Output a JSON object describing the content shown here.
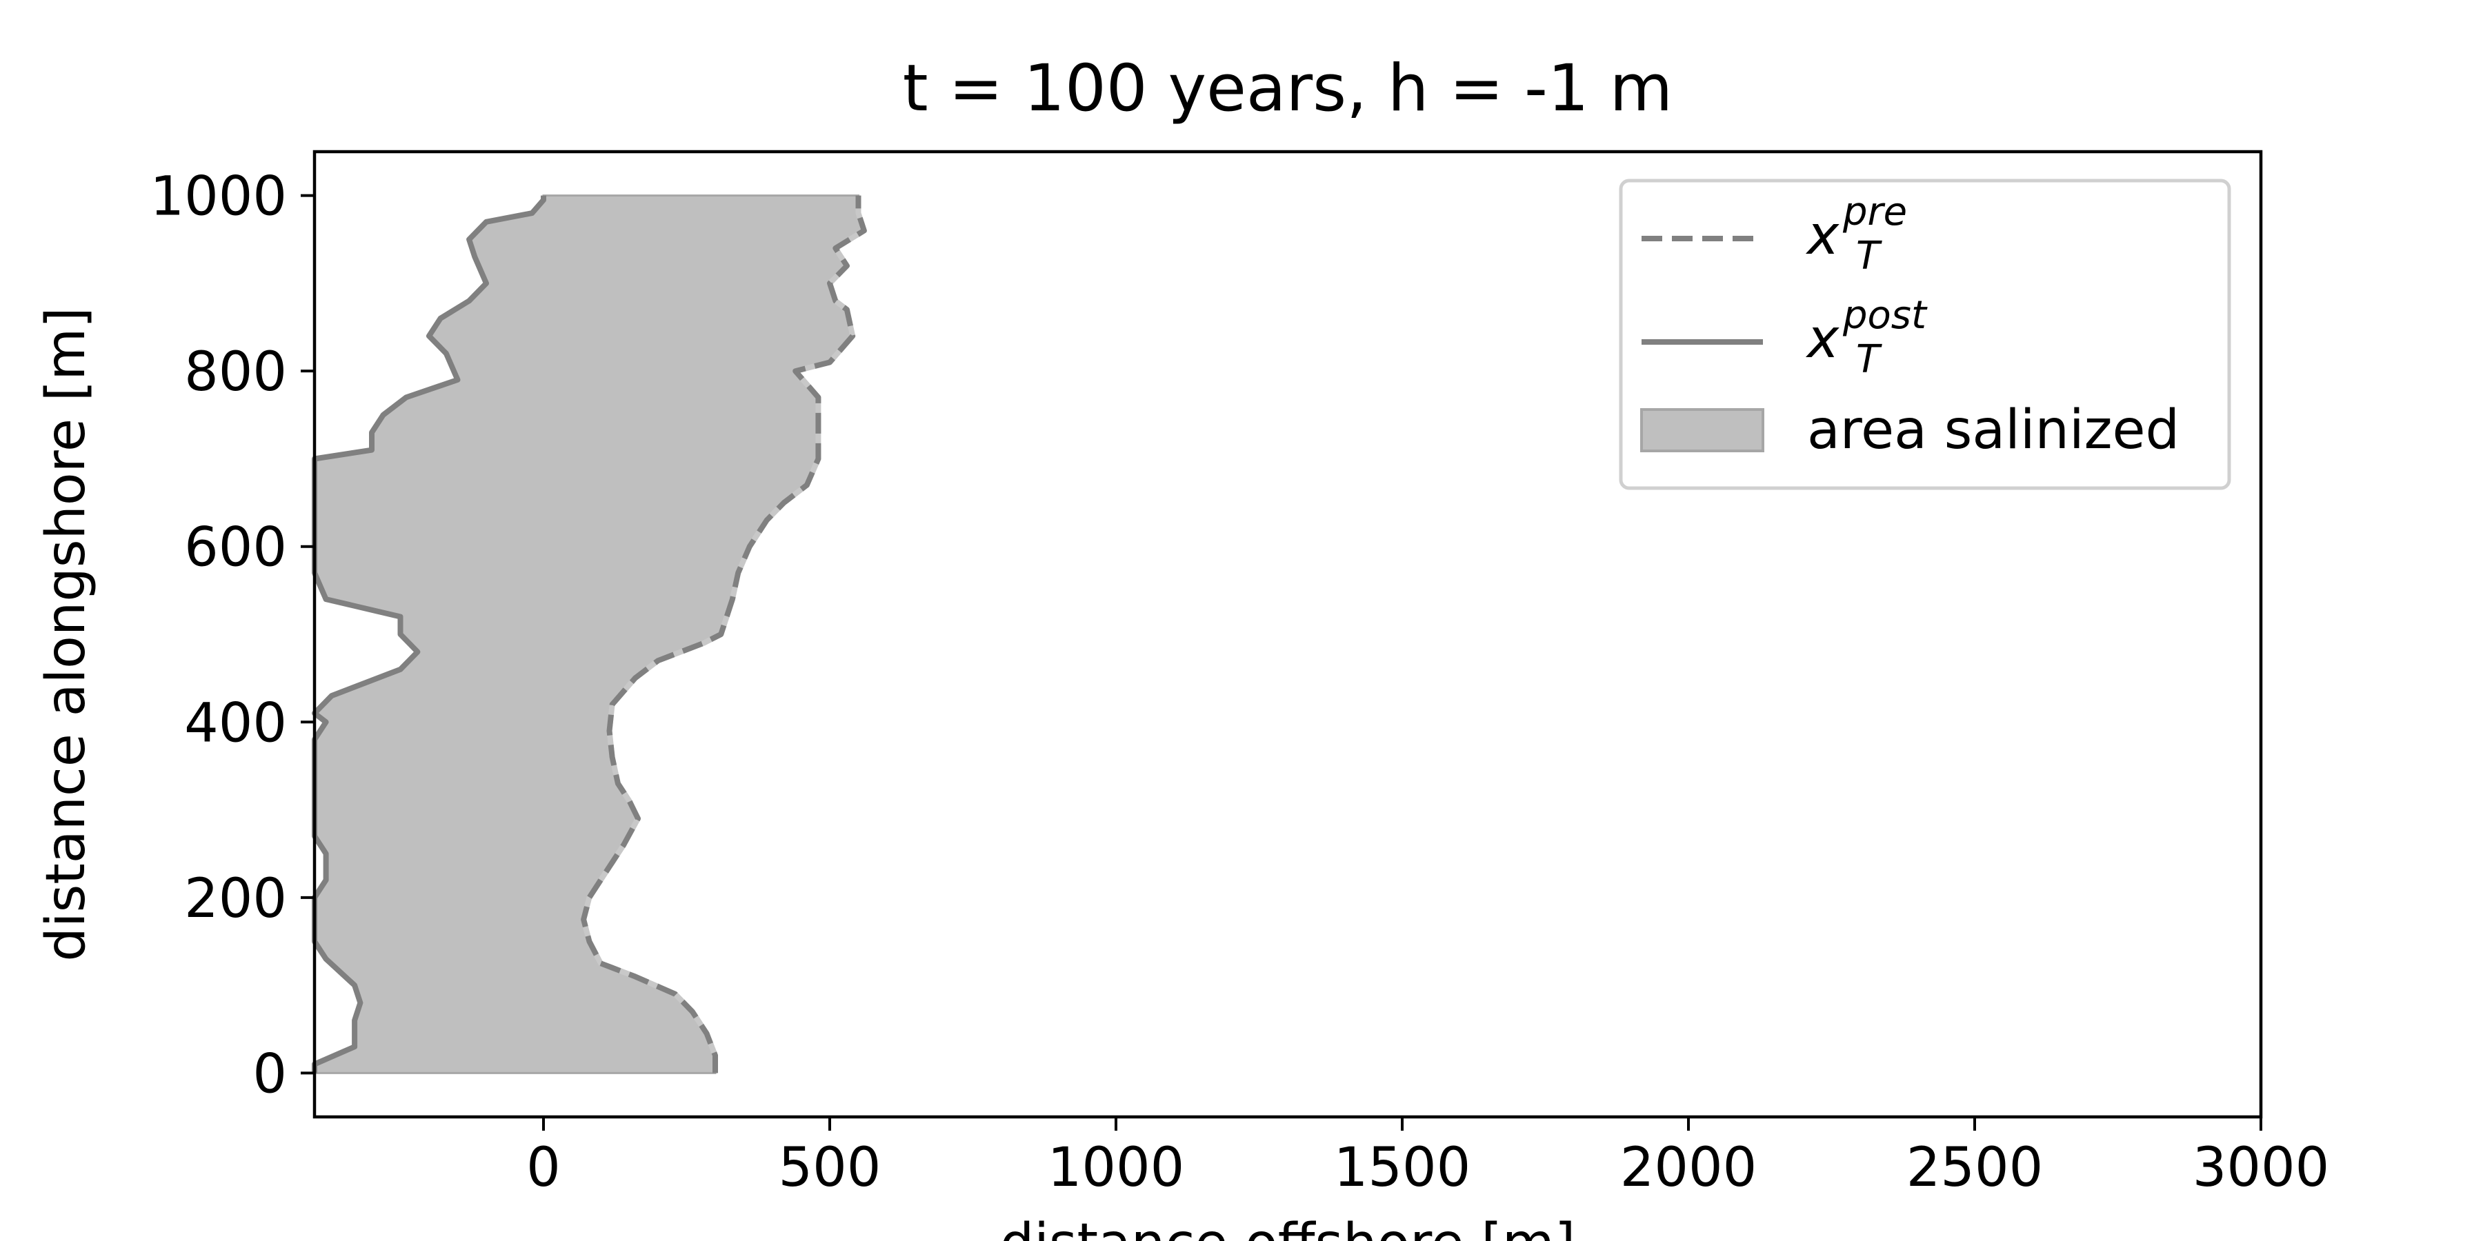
{
  "chart_data": {
    "type": "area",
    "title": "t = 100 years, h = -1 m",
    "xlabel": "distance offshore [m]",
    "ylabel": "distance alongshore [m]",
    "xlim": [
      -400,
      3000
    ],
    "ylim": [
      -50,
      1050
    ],
    "xticks": [
      0,
      500,
      1000,
      1500,
      2000,
      2500,
      3000
    ],
    "yticks": [
      0,
      200,
      400,
      600,
      800,
      1000
    ],
    "grid": false,
    "legend_position": "top-right",
    "colors": {
      "line": "#808080",
      "fill": "#bfbfbf",
      "fill_edge": "#a6a6a6",
      "dash_light": "#c8c8c8",
      "axes": "#000000"
    },
    "legend": [
      {
        "base": "x",
        "sub": "T",
        "sup": "pre",
        "style": "dashed"
      },
      {
        "base": "x",
        "sub": "T",
        "sup": "post",
        "style": "solid"
      },
      {
        "label": "area salinized",
        "style": "patch"
      }
    ],
    "series": [
      {
        "name": "x_T^pre",
        "style": "dashed",
        "points": [
          [
            300,
            0
          ],
          [
            300,
            20
          ],
          [
            285,
            45
          ],
          [
            260,
            70
          ],
          [
            230,
            90
          ],
          [
            160,
            110
          ],
          [
            100,
            125
          ],
          [
            80,
            150
          ],
          [
            70,
            175
          ],
          [
            80,
            200
          ],
          [
            110,
            230
          ],
          [
            140,
            260
          ],
          [
            165,
            290
          ],
          [
            150,
            310
          ],
          [
            130,
            330
          ],
          [
            120,
            360
          ],
          [
            115,
            390
          ],
          [
            120,
            420
          ],
          [
            160,
            450
          ],
          [
            200,
            470
          ],
          [
            280,
            490
          ],
          [
            310,
            500
          ],
          [
            330,
            540
          ],
          [
            340,
            570
          ],
          [
            360,
            600
          ],
          [
            390,
            630
          ],
          [
            420,
            650
          ],
          [
            460,
            670
          ],
          [
            480,
            700
          ],
          [
            480,
            740
          ],
          [
            480,
            770
          ],
          [
            440,
            800
          ],
          [
            500,
            810
          ],
          [
            540,
            840
          ],
          [
            530,
            870
          ],
          [
            510,
            880
          ],
          [
            500,
            900
          ],
          [
            530,
            920
          ],
          [
            510,
            940
          ],
          [
            560,
            960
          ],
          [
            550,
            980
          ],
          [
            550,
            1000
          ]
        ]
      },
      {
        "name": "x_T^post",
        "style": "solid",
        "points": [
          [
            -400,
            0
          ],
          [
            -400,
            10
          ],
          [
            -330,
            30
          ],
          [
            -330,
            60
          ],
          [
            -320,
            80
          ],
          [
            -330,
            100
          ],
          [
            -380,
            130
          ],
          [
            -400,
            150
          ],
          [
            -400,
            200
          ],
          [
            -380,
            220
          ],
          [
            -380,
            250
          ],
          [
            -400,
            270
          ],
          [
            -400,
            300
          ],
          [
            -400,
            350
          ],
          [
            -400,
            380
          ],
          [
            -380,
            400
          ],
          [
            -400,
            410
          ],
          [
            -370,
            430
          ],
          [
            -250,
            460
          ],
          [
            -220,
            480
          ],
          [
            -250,
            500
          ],
          [
            -250,
            520
          ],
          [
            -380,
            540
          ],
          [
            -400,
            570
          ],
          [
            -400,
            600
          ],
          [
            -400,
            650
          ],
          [
            -400,
            700
          ],
          [
            -300,
            710
          ],
          [
            -300,
            730
          ],
          [
            -280,
            750
          ],
          [
            -240,
            770
          ],
          [
            -150,
            790
          ],
          [
            -170,
            820
          ],
          [
            -200,
            840
          ],
          [
            -180,
            860
          ],
          [
            -130,
            880
          ],
          [
            -100,
            900
          ],
          [
            -120,
            930
          ],
          [
            -130,
            950
          ],
          [
            -100,
            970
          ],
          [
            -20,
            980
          ],
          [
            0,
            995
          ],
          [
            0,
            1000
          ]
        ]
      }
    ],
    "fill_label": "area salinized"
  }
}
